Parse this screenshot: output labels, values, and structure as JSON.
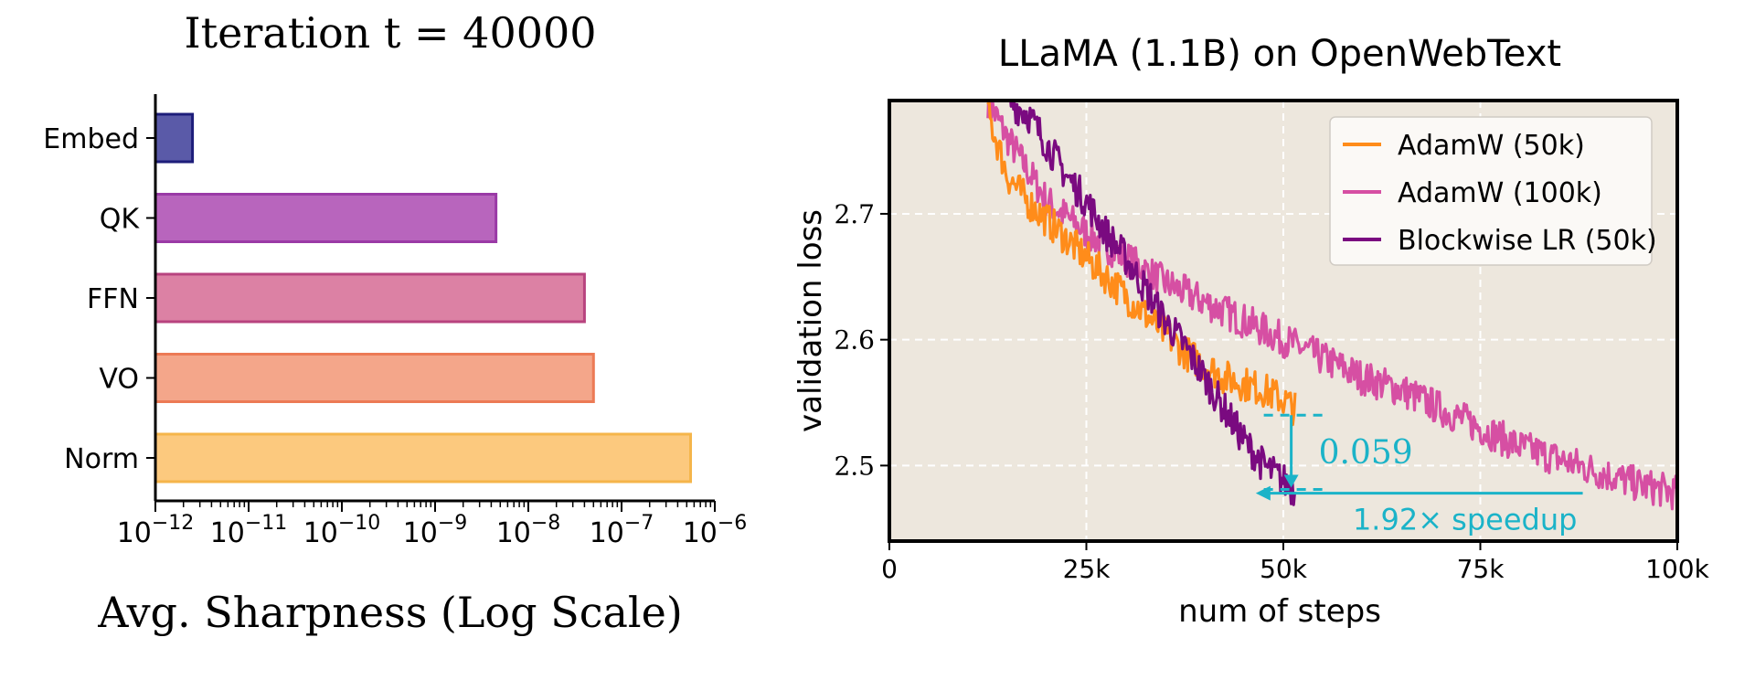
{
  "chart_data": [
    {
      "type": "bar",
      "orientation": "horizontal",
      "title": "Iteration t = 40000",
      "xlabel": "Avg. Sharpness (Log Scale)",
      "xscale": "log",
      "xlim": [
        1e-12,
        1e-06
      ],
      "x_tick_labels": [
        "10^-12",
        "10^-11",
        "10^-10",
        "10^-9",
        "10^-8",
        "10^-7",
        "10^-6"
      ],
      "categories": [
        "Embed",
        "QK",
        "FFN",
        "VO",
        "Norm"
      ],
      "values": [
        2.5e-12,
        4.5e-09,
        4e-08,
        5e-08,
        5.5e-07
      ],
      "colors": [
        "#5a5aa8",
        "#b865bd",
        "#dc81a4",
        "#f4a68a",
        "#fcc97e"
      ],
      "edge_colors": [
        "#1d1d7a",
        "#9a3aa6",
        "#b8437f",
        "#ec7a55",
        "#f5b54a"
      ]
    },
    {
      "type": "line",
      "title": "LLaMA (1.1B) on OpenWebText",
      "xlabel": "num of steps",
      "ylabel": "validation loss",
      "xlim": [
        0,
        100000
      ],
      "ylim": [
        2.44,
        2.79
      ],
      "x_ticks": [
        0,
        25000,
        50000,
        75000,
        100000
      ],
      "x_tick_labels": [
        "0",
        "25k",
        "50k",
        "75k",
        "100k"
      ],
      "y_ticks": [
        2.5,
        2.6,
        2.7
      ],
      "y_tick_labels": [
        "2.5",
        "2.6",
        "2.7"
      ],
      "grid": true,
      "legend_position": "top-right",
      "background": "#ede7dd",
      "series": [
        {
          "name": "AdamW (50k)",
          "color": "#ff8c1a",
          "x": [
            12500,
            15000,
            17500,
            20000,
            22500,
            25000,
            27500,
            30000,
            32500,
            35000,
            37500,
            40000,
            42500,
            45000,
            47500,
            50000,
            51500
          ],
          "y": [
            2.78,
            2.73,
            2.71,
            2.695,
            2.68,
            2.665,
            2.65,
            2.635,
            2.62,
            2.605,
            2.59,
            2.58,
            2.57,
            2.565,
            2.56,
            2.552,
            2.545
          ]
        },
        {
          "name": "AdamW (100k)",
          "color": "#d64fa3",
          "x": [
            12500,
            15000,
            20000,
            25000,
            30000,
            35000,
            40000,
            45000,
            50000,
            55000,
            60000,
            65000,
            70000,
            75000,
            80000,
            85000,
            90000,
            95000,
            100000
          ],
          "y": [
            2.79,
            2.76,
            2.71,
            2.685,
            2.665,
            2.645,
            2.63,
            2.615,
            2.6,
            2.585,
            2.57,
            2.56,
            2.545,
            2.53,
            2.515,
            2.505,
            2.495,
            2.485,
            2.478
          ]
        },
        {
          "name": "Blockwise LR (50k)",
          "color": "#7a0a80",
          "x": [
            15000,
            17500,
            20000,
            22500,
            25000,
            27500,
            30000,
            32500,
            35000,
            37500,
            40000,
            42500,
            45000,
            47500,
            50000,
            51500
          ],
          "y": [
            2.79,
            2.78,
            2.755,
            2.73,
            2.71,
            2.685,
            2.665,
            2.64,
            2.615,
            2.595,
            2.57,
            2.545,
            2.52,
            2.5,
            2.488,
            2.48
          ]
        }
      ],
      "annotations": [
        {
          "text": "0.059",
          "kind": "vertical-gap",
          "x": 51000,
          "y_top": 2.54,
          "y_bottom": 2.481,
          "color": "#1bb3c8"
        },
        {
          "text": "1.92× speedup",
          "kind": "horizontal-arrow",
          "y": 2.478,
          "x_from": 88000,
          "x_to": 46500,
          "color": "#1bb3c8"
        }
      ]
    }
  ]
}
